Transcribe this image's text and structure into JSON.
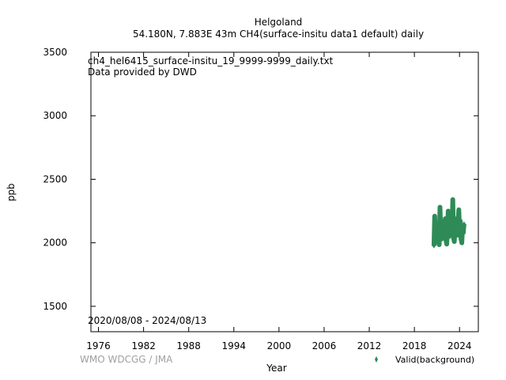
{
  "chart_data": {
    "type": "scatter",
    "title": "Helgoland",
    "subtitle": "54.180N, 7.883E 43m    CH4(surface-insitu data1 default) daily",
    "xlabel": "Year",
    "ylabel": "ppb",
    "xlim": [
      1975,
      2026.5
    ],
    "ylim": [
      1300,
      3500
    ],
    "xticks": [
      1976,
      1982,
      1988,
      1994,
      2000,
      2006,
      2012,
      2018,
      2024
    ],
    "yticks": [
      1500,
      2000,
      2500,
      3000,
      3500
    ],
    "annotations": [
      "ch4_hel6415_surface-insitu_19_9999-9999_daily.txt",
      "Data provided by DWD",
      "2020/08/08 - 2024/08/13"
    ],
    "watermark": "WMO WDCGG / JMA",
    "grid": false,
    "legend_position": "bottom-right",
    "series": [
      {
        "name": "Valid(background)",
        "color": "#2e8b57",
        "marker": "diamond",
        "x": [
          2020.6,
          2020.7,
          2020.8,
          2020.9,
          2021.0,
          2021.1,
          2021.2,
          2021.3,
          2021.4,
          2021.5,
          2021.6,
          2021.7,
          2021.8,
          2021.9,
          2022.0,
          2022.1,
          2022.2,
          2022.3,
          2022.4,
          2022.5,
          2022.6,
          2022.7,
          2022.8,
          2022.9,
          2023.0,
          2023.1,
          2023.2,
          2023.3,
          2023.4,
          2023.5,
          2023.6,
          2023.7,
          2023.8,
          2023.9,
          2024.0,
          2024.1,
          2024.2,
          2024.3,
          2024.4,
          2024.5,
          2024.6
        ],
        "y": [
          1975,
          2210,
          2040,
          2110,
          2060,
          2130,
          2000,
          1985,
          2280,
          2090,
          2030,
          2150,
          2060,
          2120,
          2080,
          2190,
          2020,
          1990,
          2100,
          2250,
          2050,
          2140,
          2070,
          2180,
          2090,
          2340,
          2040,
          2010,
          2120,
          2080,
          2190,
          2060,
          2150,
          2260,
          2100,
          2170,
          2030,
          2000,
          2120,
          2080,
          2150
        ]
      }
    ]
  }
}
